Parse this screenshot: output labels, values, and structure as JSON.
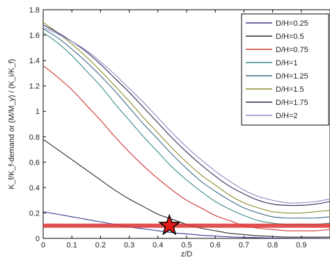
{
  "chart_data": {
    "type": "line",
    "xlabel": "z/D",
    "ylabel": "K_f/K_f-demand   or   (M/M_y) / (K_i/K_f)",
    "xlim": [
      0,
      1
    ],
    "ylim": [
      0,
      1.8
    ],
    "xticks": [
      "0",
      "0.1",
      "0.2",
      "0.3",
      "0.4",
      "0.5",
      "0.6",
      "0.7",
      "0.8",
      "0.9"
    ],
    "yticks": [
      "0",
      "0.2",
      "0.4",
      "0.6",
      "0.8",
      "1",
      "1.2",
      "1.4",
      "1.6",
      "1.8"
    ],
    "grid": false,
    "legend_position": "top-right",
    "x": [
      0,
      0.05,
      0.1,
      0.15,
      0.2,
      0.25,
      0.3,
      0.35,
      0.4,
      0.45,
      0.5,
      0.55,
      0.6,
      0.65,
      0.7,
      0.75,
      0.8,
      0.85,
      0.9,
      0.95,
      1.0
    ],
    "series": [
      {
        "name": "D/H=0.25",
        "color": "#3a3a8c",
        "values": [
          0.21,
          0.19,
          0.17,
          0.15,
          0.13,
          0.11,
          0.09,
          0.075,
          0.06,
          0.045,
          0.035,
          0.025,
          0.018,
          0.012,
          0.008,
          0.005,
          0.003,
          0.002,
          0.001,
          0.001,
          0.0
        ]
      },
      {
        "name": "D/H=0.5",
        "color": "#2a2a2a",
        "values": [
          0.78,
          0.7,
          0.62,
          0.54,
          0.46,
          0.38,
          0.31,
          0.25,
          0.19,
          0.15,
          0.11,
          0.08,
          0.06,
          0.04,
          0.03,
          0.02,
          0.015,
          0.01,
          0.01,
          0.01,
          0.01
        ]
      },
      {
        "name": "D/H=0.75",
        "color": "#cc3333",
        "values": [
          1.36,
          1.27,
          1.17,
          1.05,
          0.93,
          0.8,
          0.68,
          0.57,
          0.47,
          0.38,
          0.3,
          0.24,
          0.18,
          0.14,
          0.1,
          0.08,
          0.07,
          0.06,
          0.06,
          0.06,
          0.07
        ]
      },
      {
        "name": "D/H=1",
        "color": "#3a8a8a",
        "values": [
          1.62,
          1.54,
          1.44,
          1.32,
          1.2,
          1.06,
          0.93,
          0.8,
          0.68,
          0.56,
          0.46,
          0.37,
          0.29,
          0.23,
          0.18,
          0.14,
          0.12,
          0.11,
          0.11,
          0.11,
          0.12
        ]
      },
      {
        "name": "D/H=1.25",
        "color": "#3a6a8a",
        "values": [
          1.65,
          1.58,
          1.49,
          1.39,
          1.28,
          1.16,
          1.03,
          0.9,
          0.78,
          0.66,
          0.55,
          0.45,
          0.37,
          0.3,
          0.24,
          0.2,
          0.17,
          0.16,
          0.16,
          0.16,
          0.17
        ]
      },
      {
        "name": "D/H=1.5",
        "color": "#8a8a2a",
        "values": [
          1.7,
          1.62,
          1.53,
          1.43,
          1.32,
          1.2,
          1.08,
          0.95,
          0.83,
          0.71,
          0.6,
          0.5,
          0.42,
          0.34,
          0.28,
          0.24,
          0.21,
          0.2,
          0.2,
          0.21,
          0.22
        ]
      },
      {
        "name": "D/H=1.75",
        "color": "#2a2a5a",
        "values": [
          1.68,
          1.62,
          1.55,
          1.47,
          1.37,
          1.26,
          1.15,
          1.03,
          0.91,
          0.79,
          0.68,
          0.58,
          0.49,
          0.41,
          0.35,
          0.3,
          0.27,
          0.26,
          0.26,
          0.27,
          0.29
        ]
      },
      {
        "name": "D/H=2",
        "color": "#8a8ac8",
        "values": [
          1.66,
          1.61,
          1.55,
          1.48,
          1.39,
          1.29,
          1.18,
          1.07,
          0.95,
          0.83,
          0.72,
          0.62,
          0.53,
          0.45,
          0.38,
          0.33,
          0.3,
          0.28,
          0.28,
          0.29,
          0.31
        ]
      }
    ],
    "threshold": {
      "y": 0.1,
      "color": "#dd3333"
    },
    "marker": {
      "x": 0.44,
      "y": 0.1,
      "shape": "star",
      "fill": "#e51a1a",
      "stroke": "#000000"
    }
  }
}
